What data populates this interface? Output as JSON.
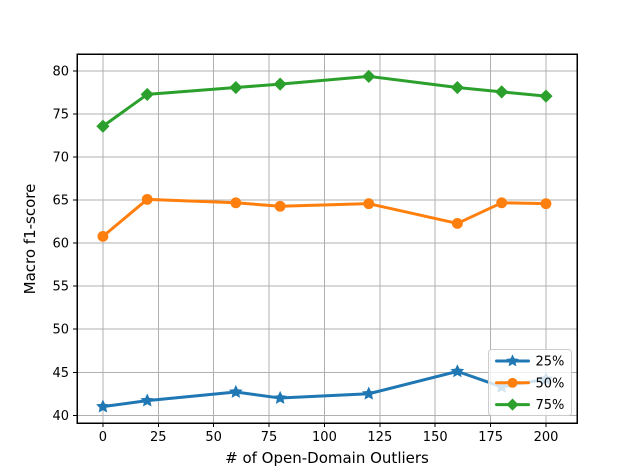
{
  "figure": {
    "background": "#ffffff"
  },
  "chart_data": {
    "type": "line",
    "title": "",
    "xlabel": "# of Open-Domain Outliers",
    "ylabel": "Macro f1-score",
    "x": [
      0,
      20,
      60,
      80,
      120,
      160,
      180,
      200
    ],
    "series": [
      {
        "name": "25%",
        "color": "#1f77b4",
        "marker": "star",
        "values": [
          41.0,
          41.7,
          42.7,
          42.0,
          42.5,
          45.1,
          43.3,
          44.2
        ]
      },
      {
        "name": "50%",
        "color": "#ff7f0e",
        "marker": "circle",
        "values": [
          60.8,
          65.1,
          64.7,
          64.3,
          64.6,
          62.3,
          64.7,
          64.6
        ]
      },
      {
        "name": "75%",
        "color": "#2ca02c",
        "marker": "diamond",
        "values": [
          73.6,
          77.3,
          78.1,
          78.5,
          79.4,
          78.1,
          77.6,
          77.1
        ]
      }
    ],
    "x_ticks": [
      0,
      25,
      50,
      75,
      100,
      125,
      150,
      175,
      200
    ],
    "y_ticks": [
      40,
      45,
      50,
      55,
      60,
      65,
      70,
      75,
      80
    ],
    "xlim": [
      -11.7,
      214.0
    ],
    "ylim": [
      39.1,
      82.0
    ],
    "grid": true,
    "grid_color": "#b0b0b0",
    "spine_color": "#000000",
    "tick_label_color": "#000000",
    "legend": {
      "position": "lower right",
      "labels": [
        "25%",
        "50%",
        "75%"
      ],
      "border_color": "#cccccc",
      "background": "rgba(255,255,255,0.8)"
    }
  }
}
